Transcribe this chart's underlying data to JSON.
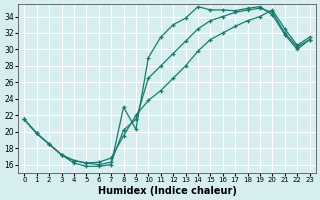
{
  "xlabel": "Humidex (Indice chaleur)",
  "background_color": "#d6eef0",
  "grid_color": "#ffffff",
  "line_color": "#1a7a6e",
  "xlim": [
    -0.5,
    23.5
  ],
  "ylim": [
    15.0,
    35.5
  ],
  "xticks": [
    0,
    1,
    2,
    3,
    4,
    5,
    6,
    7,
    8,
    9,
    10,
    11,
    12,
    13,
    14,
    15,
    16,
    17,
    18,
    19,
    20,
    21,
    22,
    23
  ],
  "yticks": [
    16,
    18,
    20,
    22,
    24,
    26,
    28,
    30,
    32,
    34
  ],
  "series": [
    {
      "x": [
        0,
        1,
        2,
        3,
        4,
        5,
        6,
        7,
        8,
        9,
        10,
        11,
        12,
        13,
        14,
        15,
        16,
        17,
        18,
        19,
        20,
        21,
        22,
        23
      ],
      "y": [
        21.5,
        19.8,
        18.5,
        17.2,
        16.2,
        15.8,
        15.8,
        16.0,
        23.0,
        20.3,
        29.0,
        31.5,
        33.0,
        33.8,
        35.2,
        34.8,
        34.8,
        34.7,
        35.0,
        35.2,
        34.2,
        31.8,
        30.0,
        31.2
      ]
    },
    {
      "x": [
        0,
        1,
        2,
        3,
        4,
        5,
        6,
        7,
        8,
        9,
        10,
        11,
        12,
        13,
        14,
        15,
        16,
        17,
        18,
        19,
        20,
        21,
        22,
        23
      ],
      "y": [
        21.5,
        19.8,
        18.5,
        17.2,
        16.5,
        16.2,
        16.0,
        16.3,
        20.2,
        21.5,
        26.5,
        28.0,
        29.5,
        31.0,
        32.5,
        33.5,
        34.0,
        34.5,
        34.8,
        35.0,
        34.5,
        32.0,
        30.3,
        31.2
      ]
    },
    {
      "x": [
        0,
        1,
        2,
        3,
        4,
        5,
        6,
        7,
        8,
        9,
        10,
        11,
        12,
        13,
        14,
        15,
        16,
        17,
        18,
        19,
        20,
        21,
        22,
        23
      ],
      "y": [
        21.5,
        19.8,
        18.5,
        17.2,
        16.5,
        16.2,
        16.3,
        16.8,
        19.5,
        22.0,
        23.8,
        25.0,
        26.5,
        28.0,
        29.8,
        31.2,
        32.0,
        32.8,
        33.5,
        34.0,
        34.8,
        32.5,
        30.5,
        31.5
      ]
    }
  ]
}
